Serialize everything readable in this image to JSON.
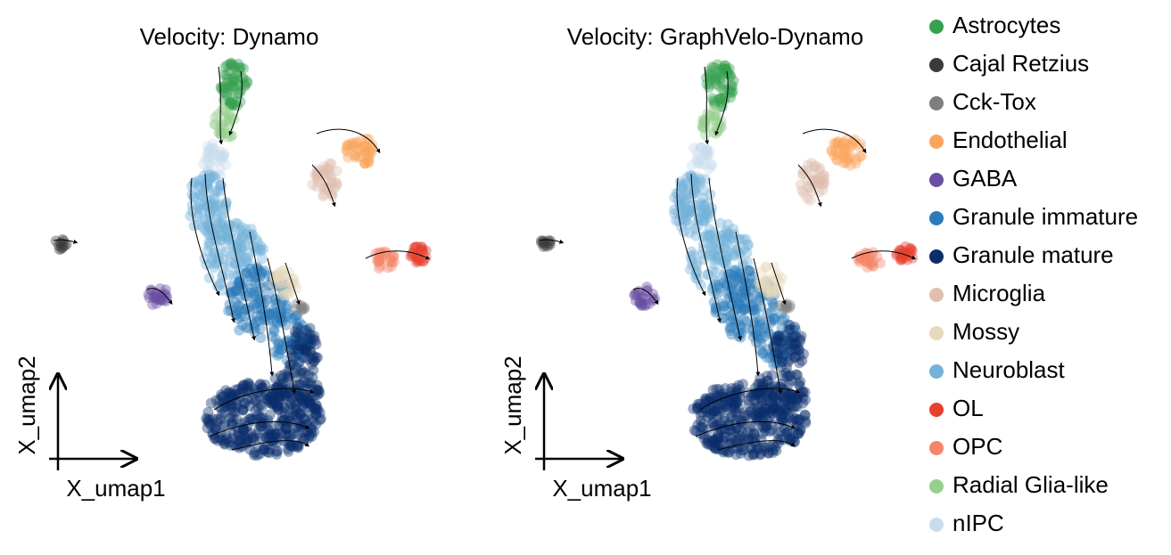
{
  "panels": [
    {
      "title": "Velocity: Dynamo",
      "xlabel": "X_umap1",
      "ylabel": "X_umap2"
    },
    {
      "title": "Velocity: GraphVelo-Dynamo",
      "xlabel": "X_umap1",
      "ylabel": "X_umap2"
    }
  ],
  "legend": [
    {
      "name": "Astrocytes",
      "color": "#36a151"
    },
    {
      "name": "Cajal Retzius",
      "color": "#3b3b3b"
    },
    {
      "name": "Cck-Tox",
      "color": "#7f7f7f"
    },
    {
      "name": "Endothelial",
      "color": "#f9a55c"
    },
    {
      "name": "GABA",
      "color": "#6b4ea3"
    },
    {
      "name": "Granule immature",
      "color": "#2b7bba"
    },
    {
      "name": "Granule mature",
      "color": "#0b2e6b"
    },
    {
      "name": "Microglia",
      "color": "#dfbfae"
    },
    {
      "name": "Mossy",
      "color": "#e5dabc"
    },
    {
      "name": "Neuroblast",
      "color": "#74b2d9"
    },
    {
      "name": "OL",
      "color": "#e6402f"
    },
    {
      "name": "OPC",
      "color": "#f6856a"
    },
    {
      "name": "Radial Glia-like",
      "color": "#96d08e"
    },
    {
      "name": "nIPC",
      "color": "#c9dcee"
    }
  ]
}
